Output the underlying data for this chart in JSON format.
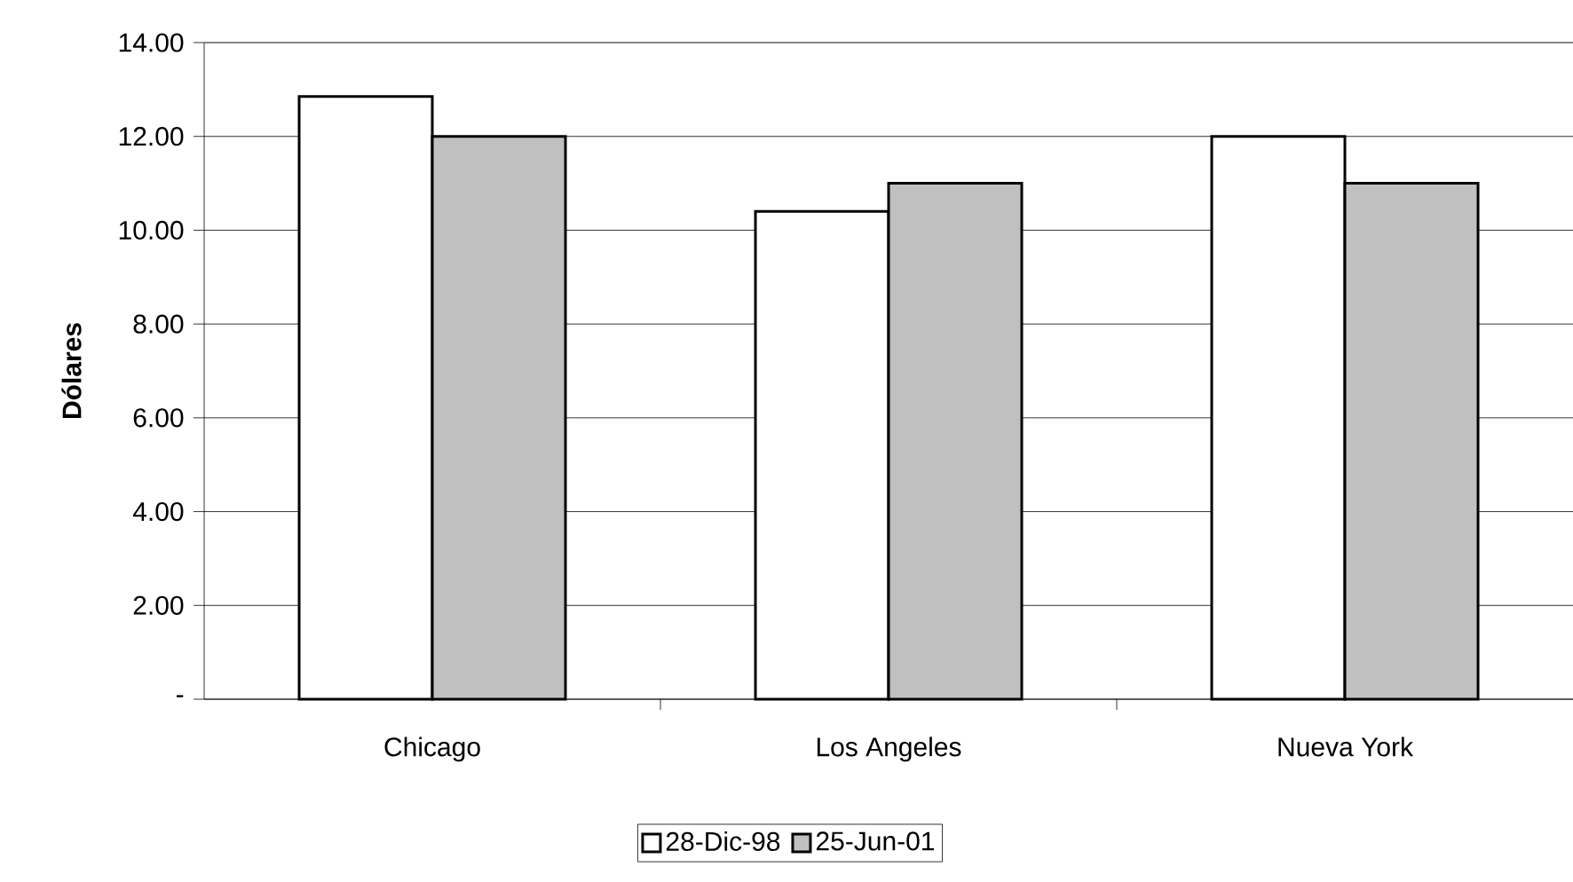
{
  "chart_data": {
    "type": "bar",
    "ylabel": "Dólares",
    "categories": [
      "Chicago",
      "Los Angeles",
      "Nueva York"
    ],
    "series": [
      {
        "name": "28-Dic-98",
        "color": "#ffffff",
        "values": [
          12.85,
          10.4,
          12.0
        ]
      },
      {
        "name": "25-Jun-01",
        "color": "#c0c0c0",
        "values": [
          12.0,
          11.0,
          11.0
        ]
      }
    ],
    "ylim": [
      0,
      14
    ],
    "yticks": [
      {
        "value": 0,
        "label": "-"
      },
      {
        "value": 2,
        "label": "2.00"
      },
      {
        "value": 4,
        "label": "4.00"
      },
      {
        "value": 6,
        "label": "6.00"
      },
      {
        "value": 8,
        "label": "8.00"
      },
      {
        "value": 10,
        "label": "10.00"
      },
      {
        "value": 12,
        "label": "12.00"
      },
      {
        "value": 14,
        "label": "14.00"
      }
    ],
    "grid": "y",
    "legend": "bottom"
  }
}
